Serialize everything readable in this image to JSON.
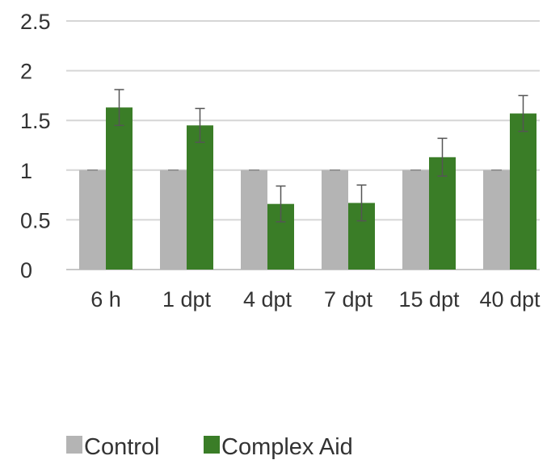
{
  "chart_data": {
    "type": "bar",
    "categories": [
      "6 h",
      "1 dpt",
      "4 dpt",
      "7 dpt",
      "15 dpt",
      "40 dpt"
    ],
    "series": [
      {
        "name": "Control",
        "color": "#b4b4b4",
        "values": [
          1,
          1,
          1,
          1,
          1,
          1
        ],
        "errors": [
          0,
          0,
          0,
          0,
          0,
          0
        ]
      },
      {
        "name": "Complex Aid",
        "color": "#3a7d27",
        "values": [
          1.63,
          1.45,
          0.66,
          0.67,
          1.13,
          1.57
        ],
        "errors": [
          0.18,
          0.17,
          0.18,
          0.18,
          0.19,
          0.18
        ]
      }
    ],
    "yticks": [
      "0",
      "0.5",
      "1",
      "1.5",
      "2",
      "2.5"
    ],
    "ylim": [
      0,
      2.5
    ],
    "title": "",
    "xlabel": "",
    "ylabel": "",
    "grid": true,
    "legend_position": "bottom-left"
  }
}
